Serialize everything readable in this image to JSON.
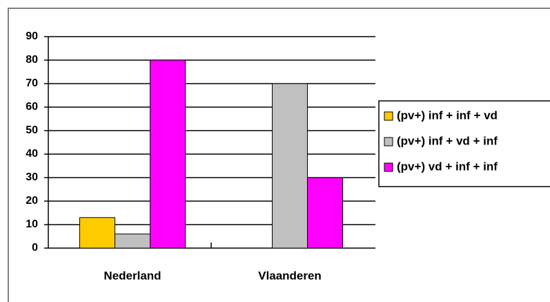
{
  "chart_data": {
    "type": "bar",
    "categories": [
      "Nederland",
      "Vlaanderen"
    ],
    "series": [
      {
        "name": "(pv+) inf + inf + vd",
        "color": "#ffcc00",
        "values": [
          13,
          0
        ]
      },
      {
        "name": "(pv+) inf + vd + inf",
        "color": "#c0c0c0",
        "values": [
          6,
          70
        ]
      },
      {
        "name": "(pv+) vd + inf + inf",
        "color": "#ff00ff",
        "values": [
          80,
          30
        ]
      }
    ],
    "ylim": [
      0,
      90
    ],
    "yticks": [
      0,
      10,
      20,
      30,
      40,
      50,
      60,
      70,
      80,
      90
    ],
    "grid": true,
    "legend": "right"
  }
}
